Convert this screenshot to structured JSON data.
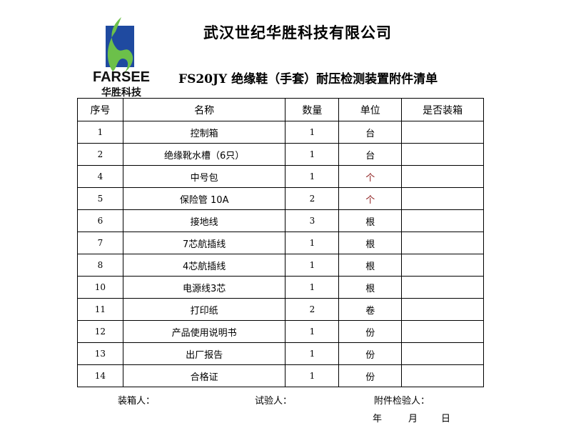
{
  "logo": {
    "brand": "FARSEE",
    "brand_cn": "华胜科技",
    "colors": {
      "blue": "#1f4aa0",
      "green": "#6cc04a"
    }
  },
  "company": "武汉世纪华胜科技有限公司",
  "title": "FS20JY 绝缘鞋（手套）耐压检测装置附件清单",
  "table": {
    "headers": [
      "序号",
      "名称",
      "数量",
      "单位",
      "是否装箱"
    ],
    "rows": [
      {
        "no": "1",
        "name": "控制箱",
        "qty": "1",
        "unit": "台",
        "packed": ""
      },
      {
        "no": "2",
        "name": "绝缘靴水槽（6只）",
        "qty": "1",
        "unit": "台",
        "packed": ""
      },
      {
        "no": "4",
        "name": "中号包",
        "qty": "1",
        "unit": "个",
        "packed": ""
      },
      {
        "no": "5",
        "name": "保险管 10A",
        "qty": "2",
        "unit": "个",
        "packed": ""
      },
      {
        "no": "6",
        "name": "接地线",
        "qty": "3",
        "unit": "根",
        "packed": ""
      },
      {
        "no": "7",
        "name": "7芯航插线",
        "qty": "1",
        "unit": "根",
        "packed": ""
      },
      {
        "no": "8",
        "name": "4芯航插线",
        "qty": "1",
        "unit": "根",
        "packed": ""
      },
      {
        "no": "10",
        "name": "电源线3芯",
        "qty": "1",
        "unit": "根",
        "packed": ""
      },
      {
        "no": "11",
        "name": "打印纸",
        "qty": "2",
        "unit": "卷",
        "packed": ""
      },
      {
        "no": "12",
        "name": "产品使用说明书",
        "qty": "1",
        "unit": "份",
        "packed": ""
      },
      {
        "no": "13",
        "name": "出厂报告",
        "qty": "1",
        "unit": "份",
        "packed": ""
      },
      {
        "no": "14",
        "name": "合格证",
        "qty": "1",
        "unit": "份",
        "packed": ""
      }
    ]
  },
  "footer": {
    "packer": "装箱人：",
    "tester": "试验人：",
    "inspector": "附件检验人：",
    "year": "年",
    "month": "月",
    "day": "日"
  }
}
